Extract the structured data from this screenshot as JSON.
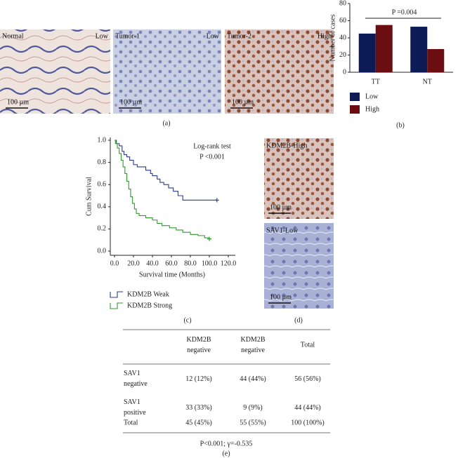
{
  "images_a": [
    {
      "label": "Normal",
      "level": "Low",
      "scale": "100 µm"
    },
    {
      "label": "Tumor-1",
      "level": "Low",
      "scale": "100 µm"
    },
    {
      "label": "Tumor-2",
      "level": "High",
      "scale": "100 µm"
    }
  ],
  "images_d": [
    {
      "label": "KDM2B-High",
      "scale": "100 µm"
    },
    {
      "label": "SAV1-Low",
      "scale": "100 µm"
    }
  ],
  "panel_labels": [
    "(a)",
    "(b)",
    "(c)",
    "(d)",
    "(e)"
  ],
  "chart_data": [
    {
      "type": "bar",
      "y_label": "Number of cases",
      "annotation": "P =0.004",
      "categories": [
        "TT",
        "NT"
      ],
      "series": [
        {
          "name": "Low",
          "color": "#0c1a55",
          "values": [
            45,
            53
          ]
        },
        {
          "name": "High",
          "color": "#6a0e12",
          "values": [
            55,
            27
          ]
        }
      ],
      "ylim": [
        0,
        80
      ],
      "yticks": [
        0,
        20,
        40,
        60,
        80
      ]
    },
    {
      "type": "line",
      "x_label": "Survival time (Months)",
      "y_label": "Cum Survival",
      "annotations": [
        "Log-rank test",
        "P <0.001"
      ],
      "series": [
        {
          "name": "KDM2B Weak",
          "color": "#2b3a8f",
          "x": [
            0,
            2,
            5,
            8,
            10,
            13,
            16,
            20,
            24,
            33,
            38,
            40,
            45,
            48,
            52,
            57,
            62,
            67,
            72,
            100,
            108
          ],
          "values": [
            1.0,
            0.97,
            0.95,
            0.9,
            0.87,
            0.85,
            0.82,
            0.78,
            0.76,
            0.73,
            0.7,
            0.68,
            0.65,
            0.62,
            0.6,
            0.57,
            0.54,
            0.5,
            0.46,
            0.46,
            0.46
          ]
        },
        {
          "name": "KDM2B Strong",
          "color": "#2e9a2e",
          "x": [
            0,
            1,
            3,
            5,
            7,
            9,
            11,
            13,
            15,
            17,
            19,
            21,
            23,
            26,
            33,
            40,
            45,
            50,
            58,
            65,
            72,
            80,
            88,
            95,
            100
          ],
          "values": [
            1.0,
            0.97,
            0.93,
            0.88,
            0.82,
            0.76,
            0.7,
            0.63,
            0.56,
            0.49,
            0.43,
            0.38,
            0.34,
            0.32,
            0.3,
            0.28,
            0.25,
            0.23,
            0.21,
            0.19,
            0.17,
            0.15,
            0.14,
            0.12,
            0.11
          ]
        }
      ],
      "xlim": [
        0,
        120
      ],
      "xticks": [
        {
          "value": 0,
          "label": "0.0"
        },
        {
          "value": 20,
          "label": "20.0"
        },
        {
          "value": 40,
          "label": "40.0"
        },
        {
          "value": 60,
          "label": "60.0"
        },
        {
          "value": 80,
          "label": "80.0"
        },
        {
          "value": 100,
          "label": "100.0"
        },
        {
          "value": 120,
          "label": "120.0"
        }
      ],
      "ylim": [
        0,
        1
      ],
      "yticks": [
        {
          "value": 0,
          "label": "0.0"
        },
        {
          "value": 0.2,
          "label": "0.2"
        },
        {
          "value": 0.4,
          "label": "0.4"
        },
        {
          "value": 0.6,
          "label": "0.6"
        },
        {
          "value": 0.8,
          "label": "0.8"
        },
        {
          "value": 1,
          "label": "1.0"
        }
      ]
    }
  ],
  "table": {
    "header": [
      "KDM2B negative",
      "KDM2B negative",
      "Total"
    ],
    "rows": [
      [
        "SAV1 negative",
        "12 (12%)",
        "44 (44%)",
        "56 (56%)"
      ],
      [
        "SAV1 positive",
        "33 (33%)",
        "9 (9%)",
        "44 (44%)"
      ],
      [
        "Total",
        "45 (45%)",
        "55 (55%)",
        "100 (100%)"
      ]
    ],
    "footer": "P<0.001; γ=-0.535"
  }
}
